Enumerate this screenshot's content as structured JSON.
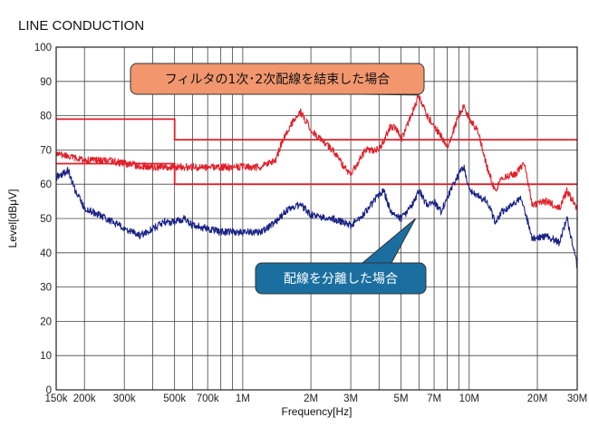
{
  "chart_data": {
    "type": "line",
    "title": "LINE CONDUCTION",
    "xlabel": "Frequency[Hz]",
    "ylabel": "Level[dBμV]",
    "x_scale": "log",
    "xlim_hz": [
      150000,
      30000000
    ],
    "ylim": [
      0,
      100
    ],
    "y_ticks": [
      0,
      10,
      20,
      30,
      40,
      50,
      60,
      70,
      80,
      90,
      100
    ],
    "x_ticks": [
      {
        "hz": 150000,
        "label": "150k"
      },
      {
        "hz": 200000,
        "label": "200k"
      },
      {
        "hz": 300000,
        "label": "300k"
      },
      {
        "hz": 500000,
        "label": "500k"
      },
      {
        "hz": 700000,
        "label": "700k"
      },
      {
        "hz": 1000000,
        "label": "1M"
      },
      {
        "hz": 2000000,
        "label": "2M"
      },
      {
        "hz": 3000000,
        "label": "3M"
      },
      {
        "hz": 5000000,
        "label": "5M"
      },
      {
        "hz": 7000000,
        "label": "7M"
      },
      {
        "hz": 10000000,
        "label": "10M"
      },
      {
        "hz": 20000000,
        "label": "20M"
      },
      {
        "hz": 30000000,
        "label": "30M"
      }
    ],
    "limit_lines": [
      {
        "color": "#e0202a",
        "points_hz": [
          [
            150000,
            79
          ],
          [
            500000,
            79
          ],
          [
            500000,
            73
          ],
          [
            30000000,
            73
          ]
        ]
      },
      {
        "color": "#e0202a",
        "points_hz": [
          [
            150000,
            66
          ],
          [
            500000,
            66
          ],
          [
            500000,
            60
          ],
          [
            30000000,
            60
          ]
        ]
      }
    ],
    "series": [
      {
        "color": "#e0202a",
        "points_hz": [
          [
            150000,
            69
          ],
          [
            170000,
            68
          ],
          [
            200000,
            67
          ],
          [
            250000,
            67
          ],
          [
            300000,
            66
          ],
          [
            400000,
            65
          ],
          [
            500000,
            65
          ],
          [
            600000,
            65
          ],
          [
            700000,
            65
          ],
          [
            800000,
            65
          ],
          [
            1000000,
            65
          ],
          [
            1200000,
            65
          ],
          [
            1400000,
            67
          ],
          [
            1500000,
            73
          ],
          [
            1650000,
            78
          ],
          [
            1800000,
            81
          ],
          [
            2000000,
            76
          ],
          [
            2200000,
            73
          ],
          [
            2500000,
            70
          ],
          [
            2800000,
            65
          ],
          [
            3000000,
            63
          ],
          [
            3200000,
            66
          ],
          [
            3500000,
            70
          ],
          [
            3800000,
            70
          ],
          [
            4000000,
            70
          ],
          [
            4500000,
            77
          ],
          [
            4800000,
            76
          ],
          [
            5000000,
            73
          ],
          [
            5400000,
            78
          ],
          [
            6000000,
            86
          ],
          [
            6500000,
            80
          ],
          [
            7000000,
            77
          ],
          [
            8000000,
            71
          ],
          [
            9000000,
            80
          ],
          [
            9500000,
            83
          ],
          [
            10000000,
            79
          ],
          [
            11000000,
            75
          ],
          [
            12000000,
            65
          ],
          [
            13000000,
            58
          ],
          [
            14000000,
            62
          ],
          [
            16000000,
            63
          ],
          [
            17500000,
            66
          ],
          [
            19000000,
            54
          ],
          [
            22000000,
            55
          ],
          [
            25000000,
            53
          ],
          [
            27000000,
            58
          ],
          [
            30000000,
            53
          ]
        ]
      },
      {
        "color": "#1a2285",
        "points_hz": [
          [
            150000,
            62
          ],
          [
            170000,
            64
          ],
          [
            180000,
            59
          ],
          [
            200000,
            53
          ],
          [
            250000,
            50
          ],
          [
            300000,
            47
          ],
          [
            350000,
            45
          ],
          [
            400000,
            47
          ],
          [
            450000,
            49
          ],
          [
            500000,
            49
          ],
          [
            550000,
            50
          ],
          [
            600000,
            48
          ],
          [
            700000,
            47
          ],
          [
            800000,
            46
          ],
          [
            1000000,
            46
          ],
          [
            1200000,
            46
          ],
          [
            1400000,
            49
          ],
          [
            1600000,
            53
          ],
          [
            1800000,
            54
          ],
          [
            2000000,
            51
          ],
          [
            2500000,
            50
          ],
          [
            3000000,
            48
          ],
          [
            3300000,
            50
          ],
          [
            4000000,
            57
          ],
          [
            4200000,
            58
          ],
          [
            4500000,
            52
          ],
          [
            5000000,
            50
          ],
          [
            5500000,
            53
          ],
          [
            6000000,
            58
          ],
          [
            6500000,
            54
          ],
          [
            7000000,
            55
          ],
          [
            7500000,
            52
          ],
          [
            8000000,
            56
          ],
          [
            9000000,
            63
          ],
          [
            9500000,
            65
          ],
          [
            10000000,
            58
          ],
          [
            12000000,
            55
          ],
          [
            13000000,
            49
          ],
          [
            14000000,
            52
          ],
          [
            17000000,
            56
          ],
          [
            19000000,
            44
          ],
          [
            22000000,
            45
          ],
          [
            25000000,
            43
          ],
          [
            27000000,
            50
          ],
          [
            30000000,
            36
          ]
        ]
      }
    ],
    "annotations": [
      {
        "text": "フィルタの1次･2次配線を結束した場合",
        "fill": "#f2966e",
        "text_color": "#111111",
        "points_to_hz": [
          6000000,
          86
        ]
      },
      {
        "text": "配線を分離した場合",
        "fill": "#1a6fa0",
        "text_color": "#ffffff",
        "points_to_hz": [
          5800000,
          50
        ]
      }
    ]
  }
}
